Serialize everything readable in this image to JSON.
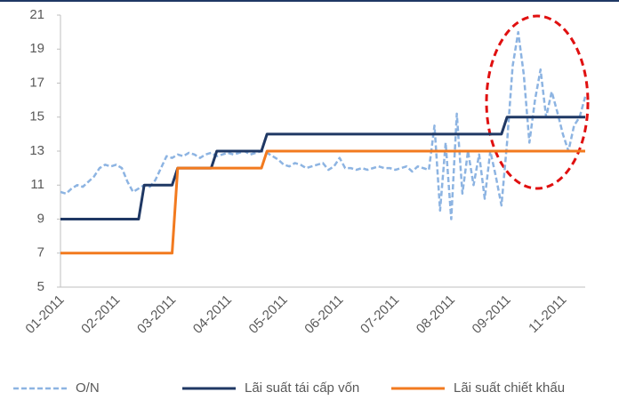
{
  "chart_data": {
    "type": "line",
    "categories": [
      "01-2011",
      null,
      null,
      null,
      null,
      null,
      null,
      null,
      null,
      null,
      "02-2011",
      null,
      null,
      null,
      null,
      null,
      null,
      null,
      null,
      null,
      "03-2011",
      null,
      null,
      null,
      null,
      null,
      null,
      null,
      null,
      null,
      "04-2011",
      null,
      null,
      null,
      null,
      null,
      null,
      null,
      null,
      null,
      "05-2011",
      null,
      null,
      null,
      null,
      null,
      null,
      null,
      null,
      null,
      "06-2011",
      null,
      null,
      null,
      null,
      null,
      null,
      null,
      null,
      null,
      "07-2011",
      null,
      null,
      null,
      null,
      null,
      null,
      null,
      null,
      null,
      "08-2011",
      null,
      null,
      null,
      null,
      null,
      null,
      null,
      null,
      null,
      "09-2011",
      null,
      null,
      null,
      null,
      null,
      null,
      null,
      null,
      null,
      "11-2011",
      null,
      null,
      null,
      null
    ],
    "series": [
      {
        "name": "O/N",
        "color": "#8db4e2",
        "dashed": true,
        "values": [
          10.6,
          10.5,
          10.8,
          11.0,
          10.9,
          11.2,
          11.5,
          12.0,
          12.2,
          12.1,
          12.2,
          12.0,
          11.2,
          10.6,
          10.8,
          11.0,
          10.9,
          11.3,
          12.0,
          12.7,
          12.6,
          12.8,
          12.7,
          12.9,
          12.8,
          12.6,
          12.8,
          12.9,
          12.7,
          12.8,
          12.9,
          12.8,
          12.9,
          13.0,
          12.8,
          12.9,
          13.0,
          12.9,
          12.7,
          12.5,
          12.2,
          12.1,
          12.3,
          12.2,
          12.0,
          12.1,
          12.2,
          12.3,
          11.9,
          12.1,
          12.6,
          12.0,
          12.0,
          11.9,
          12.0,
          11.9,
          12.0,
          12.1,
          12.0,
          12.0,
          11.9,
          12.0,
          12.1,
          11.8,
          12.1,
          12.0,
          11.9,
          14.5,
          9.5,
          13.5,
          9.0,
          15.2,
          10.5,
          13.0,
          11.0,
          12.8,
          10.2,
          13.0,
          11.5,
          9.8,
          13.5,
          18.0,
          20.0,
          17.5,
          13.5,
          16.0,
          17.8,
          15.0,
          16.5,
          15.3,
          14.0,
          13.0,
          14.5,
          15.0,
          16.2
        ]
      },
      {
        "name": "Lãi suất tái cấp vốn",
        "color": "#1f3864",
        "dashed": false,
        "values": [
          9,
          9,
          9,
          9,
          9,
          9,
          9,
          9,
          9,
          9,
          9,
          9,
          9,
          9,
          9,
          11,
          11,
          11,
          11,
          11,
          11,
          12,
          12,
          12,
          12,
          12,
          12,
          12,
          13,
          13,
          13,
          13,
          13,
          13,
          13,
          13,
          13,
          14,
          14,
          14,
          14,
          14,
          14,
          14,
          14,
          14,
          14,
          14,
          14,
          14,
          14,
          14,
          14,
          14,
          14,
          14,
          14,
          14,
          14,
          14,
          14,
          14,
          14,
          14,
          14,
          14,
          14,
          14,
          14,
          14,
          14,
          14,
          14,
          14,
          14,
          14,
          14,
          14,
          14,
          14,
          15,
          15,
          15,
          15,
          15,
          15,
          15,
          15,
          15,
          15,
          15,
          15,
          15,
          15,
          15
        ]
      },
      {
        "name": "Lãi suất chiết khấu",
        "color": "#f27a1f",
        "dashed": false,
        "values": [
          7,
          7,
          7,
          7,
          7,
          7,
          7,
          7,
          7,
          7,
          7,
          7,
          7,
          7,
          7,
          7,
          7,
          7,
          7,
          7,
          7,
          12,
          12,
          12,
          12,
          12,
          12,
          12,
          12,
          12,
          12,
          12,
          12,
          12,
          12,
          12,
          12,
          13,
          13,
          13,
          13,
          13,
          13,
          13,
          13,
          13,
          13,
          13,
          13,
          13,
          13,
          13,
          13,
          13,
          13,
          13,
          13,
          13,
          13,
          13,
          13,
          13,
          13,
          13,
          13,
          13,
          13,
          13,
          13,
          13,
          13,
          13,
          13,
          13,
          13,
          13,
          13,
          13,
          13,
          13,
          13,
          13,
          13,
          13,
          13,
          13,
          13,
          13,
          13,
          13,
          13,
          13,
          13,
          13,
          13
        ]
      }
    ],
    "ylim": [
      5,
      21
    ],
    "yticks": [
      5,
      7,
      9,
      11,
      13,
      15,
      17,
      19,
      21
    ],
    "grid": false,
    "legend": "bottom"
  }
}
